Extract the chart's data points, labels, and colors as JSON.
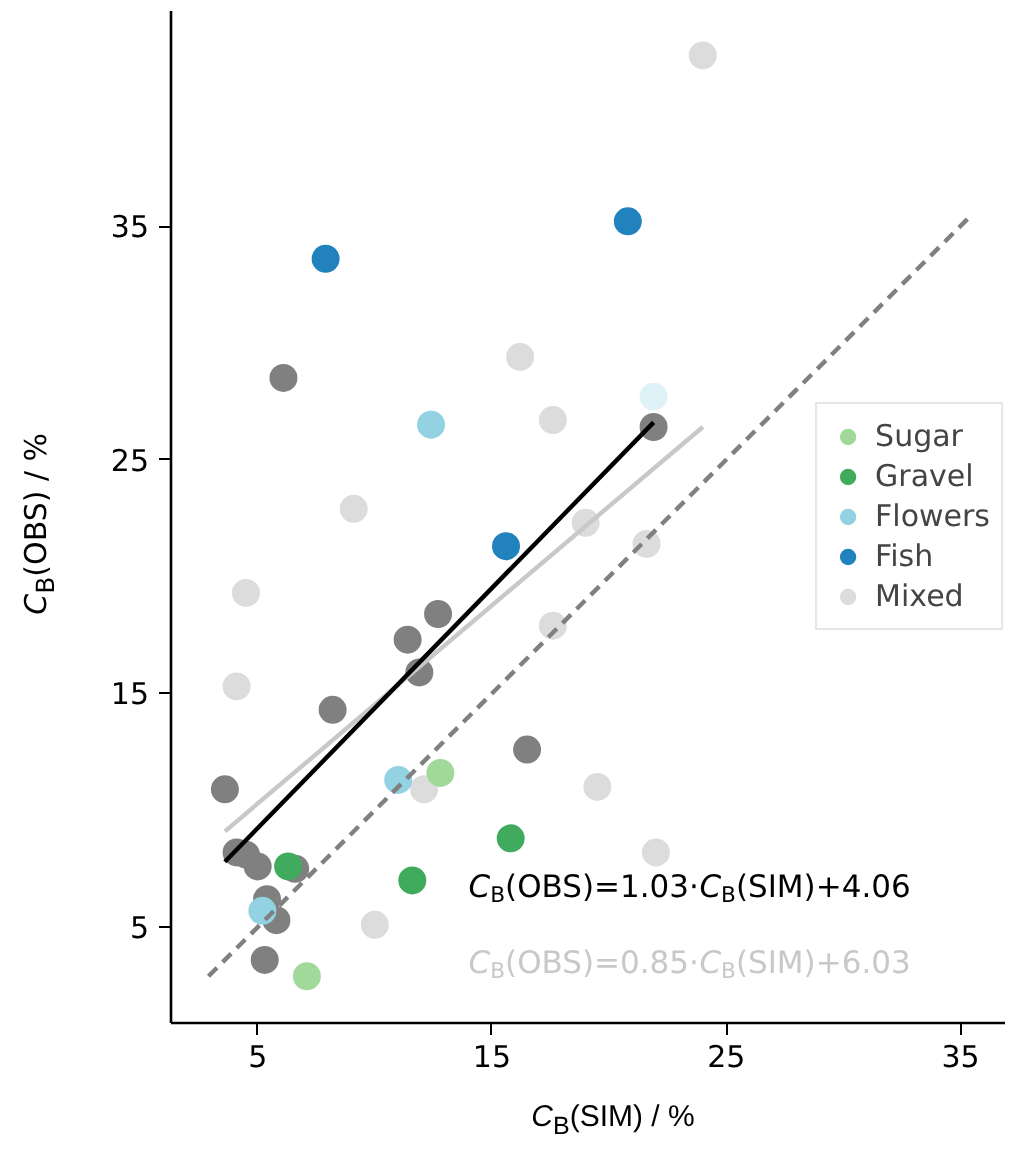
{
  "chart_data": {
    "type": "scatter",
    "xlabel": "C$_{B}$(SIM) / %",
    "ylabel": "C$_{B}$(OBS) / %",
    "xlim": [
      1.3,
      36.9
    ],
    "ylim": [
      0.9,
      44.2
    ],
    "xticks": [
      5,
      15,
      25,
      35
    ],
    "yticks": [
      5,
      15,
      25,
      35
    ],
    "grid": false,
    "legend": "right",
    "marker": "circle",
    "series": [
      {
        "color": "#808080",
        "x": [
          6.1,
          21.9,
          12.7,
          11.4,
          11.9,
          8.2,
          3.6,
          16.5,
          4.1,
          4.5,
          5.0,
          6.6,
          5.4,
          5.8,
          5.3
        ],
        "values": [
          28.5,
          26.4,
          18.4,
          17.3,
          15.9,
          14.3,
          10.9,
          12.6,
          8.2,
          8.1,
          7.6,
          7.5,
          6.2,
          5.3,
          3.6
        ]
      },
      {
        "name": "Mixed",
        "color": "#dcdcdc",
        "x": [
          24.0,
          16.2,
          17.6,
          9.1,
          19.0,
          21.6,
          4.5,
          4.1,
          17.6,
          12.1,
          19.5,
          22.0,
          10.0
        ],
        "values": [
          42.3,
          29.4,
          26.7,
          22.9,
          22.3,
          21.4,
          19.3,
          15.3,
          17.9,
          10.9,
          11.0,
          8.2,
          5.1
        ]
      },
      {
        "color": "#dff2f7",
        "x": [
          21.9
        ],
        "values": [
          27.7
        ]
      },
      {
        "name": "Sugar",
        "color": "#a1d99b",
        "x": [
          12.8,
          7.1
        ],
        "values": [
          11.6,
          2.9
        ]
      },
      {
        "name": "Gravel",
        "color": "#41ab5d",
        "x": [
          6.3,
          11.6,
          15.8
        ],
        "values": [
          7.6,
          7.0,
          8.8
        ]
      },
      {
        "name": "Flowers",
        "color": "#92d2e2",
        "x": [
          11.0,
          5.2,
          12.4
        ],
        "values": [
          11.3,
          5.7,
          26.5
        ]
      },
      {
        "name": "Fish",
        "color": "#2182be",
        "x": [
          7.9,
          20.8,
          15.6
        ],
        "values": [
          33.6,
          35.2,
          21.3
        ]
      },
      {
        "type": "line",
        "marker": "none",
        "color": "#808080",
        "line_style": "dashed",
        "x": [
          2.9,
          35.3
        ],
        "values": [
          2.9,
          35.3
        ]
      },
      {
        "type": "line",
        "marker": "none",
        "name": "C$_{B}$(OBS)=0.85·C$_{B}$(SIM)+6.03",
        "color": "#c8c8c8",
        "line_style": "solid",
        "x": [
          3.6,
          24.0
        ],
        "values": [
          9.1,
          26.4
        ]
      },
      {
        "type": "line",
        "marker": "none",
        "name": "C$_{B}$(OBS)=1.03·C$_{B}$(SIM)+4.06",
        "color": "#000000",
        "line_style": "solid",
        "x": [
          3.6,
          21.9
        ],
        "values": [
          7.8,
          26.6
        ]
      }
    ]
  }
}
